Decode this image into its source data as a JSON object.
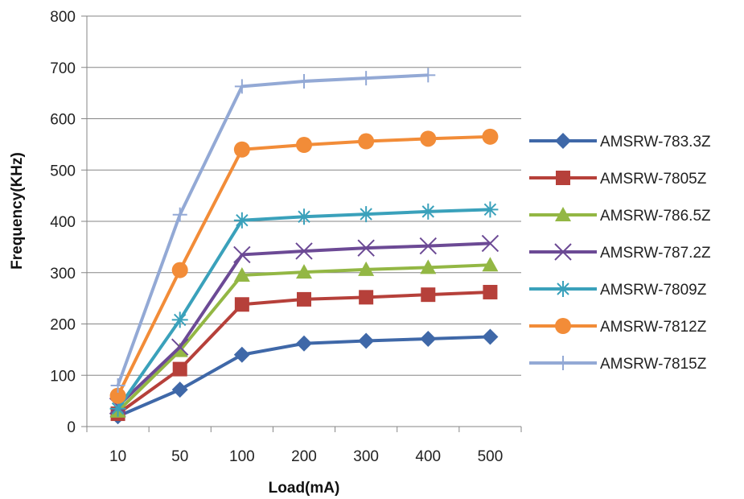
{
  "chart_data": {
    "type": "line",
    "title": "",
    "xlabel": "Load(mA)",
    "ylabel": "Frequency(KHz)",
    "categories": [
      "10",
      "50",
      "100",
      "200",
      "300",
      "400",
      "500"
    ],
    "ylim": [
      0,
      800
    ],
    "yticks": [
      0,
      100,
      200,
      300,
      400,
      500,
      600,
      700,
      800
    ],
    "grid": "horizontal",
    "legend_position": "right",
    "series": [
      {
        "name": "AMSRW-783.3Z",
        "color": "#3f68a8",
        "marker": "diamond",
        "values": [
          20,
          72,
          140,
          162,
          167,
          171,
          175
        ]
      },
      {
        "name": "AMSRW-7805Z",
        "color": "#b6403a",
        "marker": "square",
        "values": [
          25,
          112,
          238,
          248,
          252,
          257,
          262
        ]
      },
      {
        "name": "AMSRW-786.5Z",
        "color": "#93b744",
        "marker": "triangle",
        "values": [
          30,
          148,
          295,
          301,
          306,
          310,
          315
        ]
      },
      {
        "name": "AMSRW-787.2Z",
        "color": "#6c4a95",
        "marker": "x",
        "values": [
          40,
          155,
          335,
          342,
          348,
          352,
          357
        ]
      },
      {
        "name": "AMSRW-7809Z",
        "color": "#3aa1bb",
        "marker": "asterisk",
        "values": [
          35,
          208,
          402,
          409,
          414,
          419,
          423
        ]
      },
      {
        "name": "AMSRW-7812Z",
        "color": "#f28c38",
        "marker": "circle",
        "values": [
          60,
          305,
          540,
          549,
          556,
          561,
          565
        ]
      },
      {
        "name": "AMSRW-7815Z",
        "color": "#93a9d5",
        "marker": "plus",
        "values": [
          80,
          413,
          663,
          673,
          679,
          685,
          null
        ]
      }
    ]
  }
}
